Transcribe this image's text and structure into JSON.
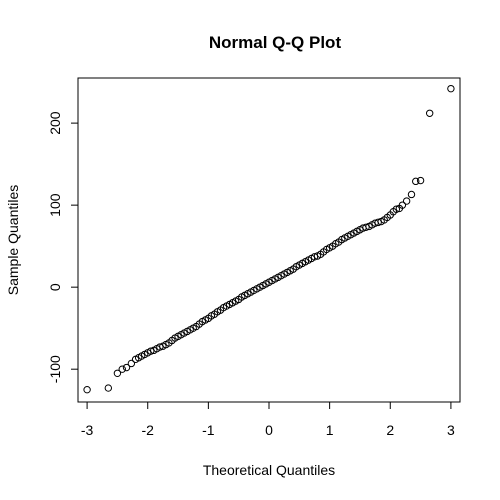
{
  "chart_data": {
    "type": "scatter",
    "title": "Normal Q-Q Plot",
    "xlabel": "Theoretical Quantiles",
    "ylabel": "Sample Quantiles",
    "xlim": [
      -3.15,
      3.15
    ],
    "ylim": [
      -140,
      255
    ],
    "x_ticks": [
      -3,
      -2,
      -1,
      0,
      1,
      2,
      3
    ],
    "x_tick_labels": [
      "-3",
      "-2",
      "-1",
      "0",
      "1",
      "2",
      "3"
    ],
    "y_ticks": [
      -100,
      0,
      100,
      200
    ],
    "y_tick_labels": [
      "-100",
      "0",
      "100",
      "200"
    ],
    "grid": false,
    "legend": "none",
    "marker": "open-circle",
    "colors": {
      "marker": "#000000",
      "axis": "#000000",
      "background": "#ffffff"
    },
    "series": [
      {
        "x": [
          -3.0,
          -2.65,
          -2.5,
          -2.42,
          -2.35,
          -2.27,
          -2.2,
          -2.15,
          -2.1,
          -2.05,
          -2.0,
          -1.95,
          -1.9,
          -1.85,
          -1.8,
          -1.75,
          -1.7,
          -1.65,
          -1.6,
          -1.55,
          -1.5,
          -1.45,
          -1.4,
          -1.35,
          -1.3,
          -1.25,
          -1.2,
          -1.15,
          -1.1,
          -1.05,
          -1.0,
          -0.95,
          -0.9,
          -0.85,
          -0.8,
          -0.75,
          -0.7,
          -0.65,
          -0.6,
          -0.55,
          -0.5,
          -0.45,
          -0.4,
          -0.35,
          -0.3,
          -0.25,
          -0.2,
          -0.15,
          -0.1,
          -0.05,
          0.0,
          0.05,
          0.1,
          0.15,
          0.2,
          0.25,
          0.3,
          0.35,
          0.4,
          0.45,
          0.5,
          0.55,
          0.6,
          0.65,
          0.7,
          0.75,
          0.8,
          0.85,
          0.9,
          0.95,
          1.0,
          1.05,
          1.1,
          1.15,
          1.2,
          1.25,
          1.3,
          1.35,
          1.4,
          1.45,
          1.5,
          1.55,
          1.6,
          1.65,
          1.7,
          1.75,
          1.8,
          1.85,
          1.9,
          1.95,
          2.0,
          2.05,
          2.1,
          2.15,
          2.2,
          2.27,
          2.35,
          2.42,
          2.5,
          2.65,
          3.0
        ],
        "y": [
          -125,
          -123,
          -105,
          -100,
          -98,
          -93,
          -88,
          -86,
          -84,
          -82,
          -80,
          -78,
          -77,
          -75,
          -73,
          -72,
          -70,
          -68,
          -65,
          -62,
          -60,
          -58,
          -56,
          -54,
          -52,
          -50,
          -48,
          -45,
          -42,
          -40,
          -38,
          -35,
          -33,
          -30,
          -28,
          -25,
          -23,
          -21,
          -19,
          -17,
          -15,
          -12,
          -10,
          -8,
          -6,
          -4,
          -2,
          0,
          2,
          4,
          6,
          8,
          10,
          12,
          14,
          16,
          18,
          20,
          22,
          25,
          27,
          29,
          31,
          33,
          35,
          37,
          38,
          40,
          43,
          46,
          48,
          50,
          53,
          55,
          58,
          60,
          62,
          64,
          66,
          68,
          70,
          72,
          73,
          74,
          76,
          78,
          79,
          80,
          82,
          85,
          88,
          92,
          95,
          96,
          100,
          105,
          113,
          129,
          130,
          212,
          242
        ]
      }
    ]
  }
}
